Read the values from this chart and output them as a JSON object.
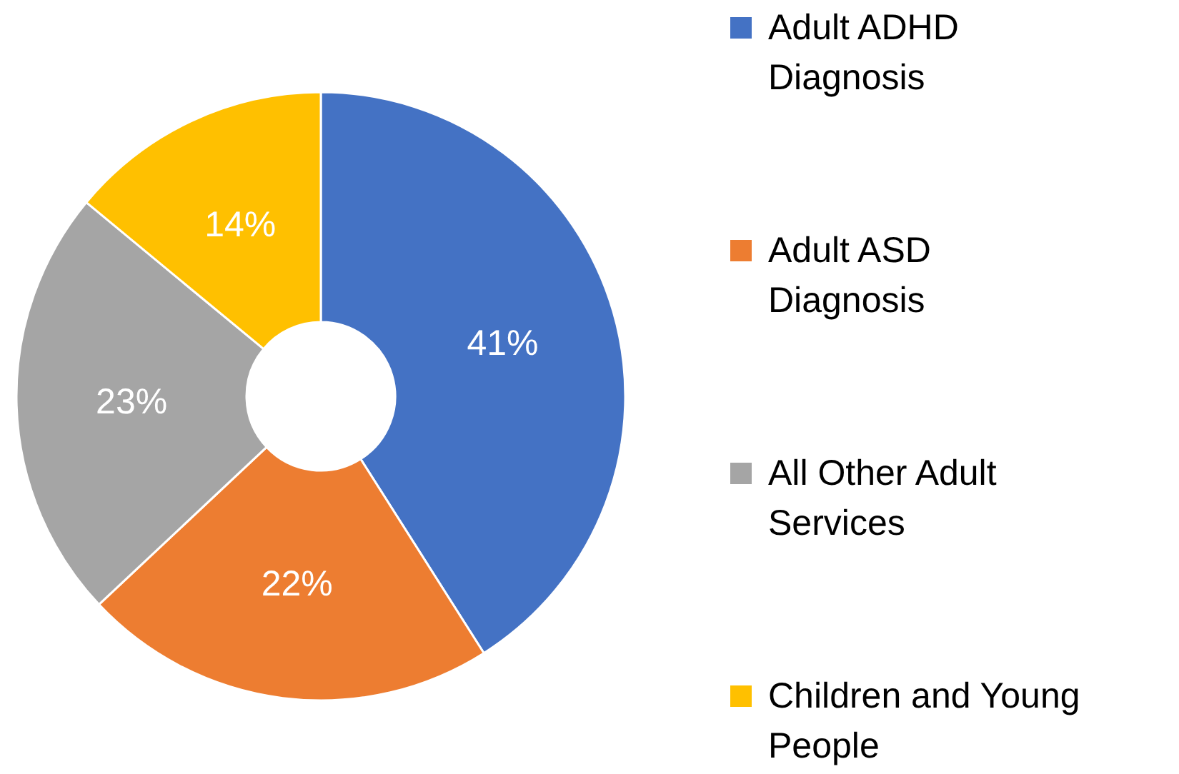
{
  "chart_data": {
    "type": "donut",
    "categories": [
      "Adult ADHD Diagnosis",
      "Adult ASD Diagnosis",
      "All Other Adult Services",
      "Children and Young People"
    ],
    "values": [
      41,
      22,
      23,
      14
    ],
    "colors": [
      "#4472c4",
      "#ed7d31",
      "#a5a5a5",
      "#ffc000"
    ],
    "value_labels": [
      "41%",
      "22%",
      "23%",
      "14%"
    ],
    "legend": "right"
  }
}
